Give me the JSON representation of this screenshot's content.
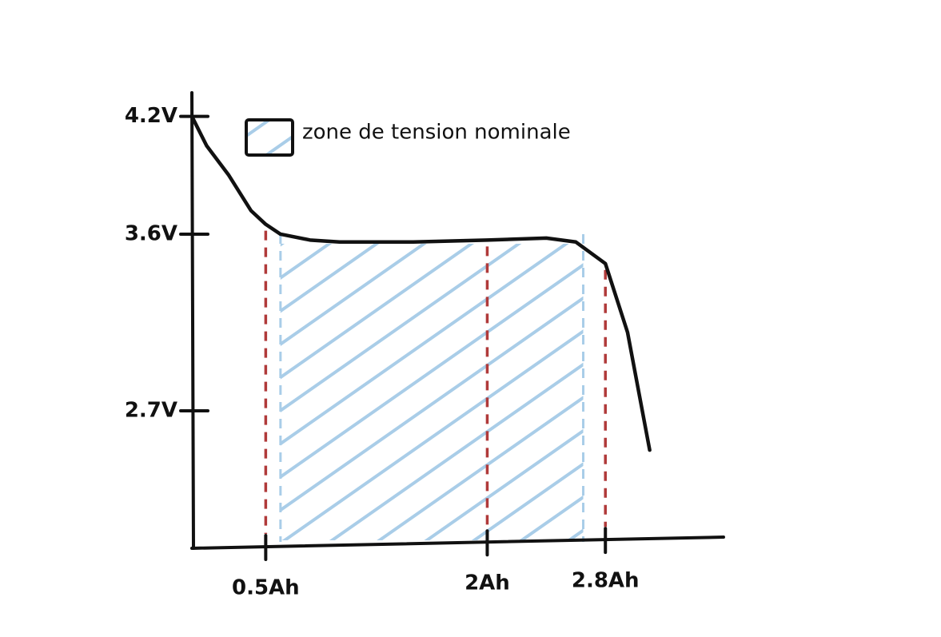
{
  "chart_data": {
    "type": "line",
    "x": [
      0,
      0.1,
      0.25,
      0.4,
      0.5,
      0.6,
      0.8,
      1.0,
      1.5,
      2.0,
      2.4,
      2.6,
      2.8,
      2.95,
      3.05,
      3.1
    ],
    "series": [
      {
        "color": "#111111",
        "values": [
          4.2,
          4.05,
          3.9,
          3.72,
          3.65,
          3.6,
          3.57,
          3.56,
          3.56,
          3.57,
          3.58,
          3.56,
          3.45,
          3.1,
          2.7,
          2.5
        ]
      }
    ],
    "xlim": [
      0,
      3.6
    ],
    "ylim": [
      2.0,
      4.3
    ],
    "xticks": [
      {
        "value": 0.5,
        "label": "0.5Ah"
      },
      {
        "value": 2,
        "label": "2Ah"
      },
      {
        "value": 2.8,
        "label": "2.8Ah"
      }
    ],
    "yticks": [
      {
        "value": 4.2,
        "label": "4.2V"
      },
      {
        "value": 3.6,
        "label": "3.6V"
      },
      {
        "value": 2.7,
        "label": "2.7V"
      }
    ],
    "zone": {
      "label": "zone de tension nominale",
      "x": [
        0.6,
        2.65
      ],
      "color": "#a9cde8"
    },
    "marker_color": "#b03a3a"
  }
}
